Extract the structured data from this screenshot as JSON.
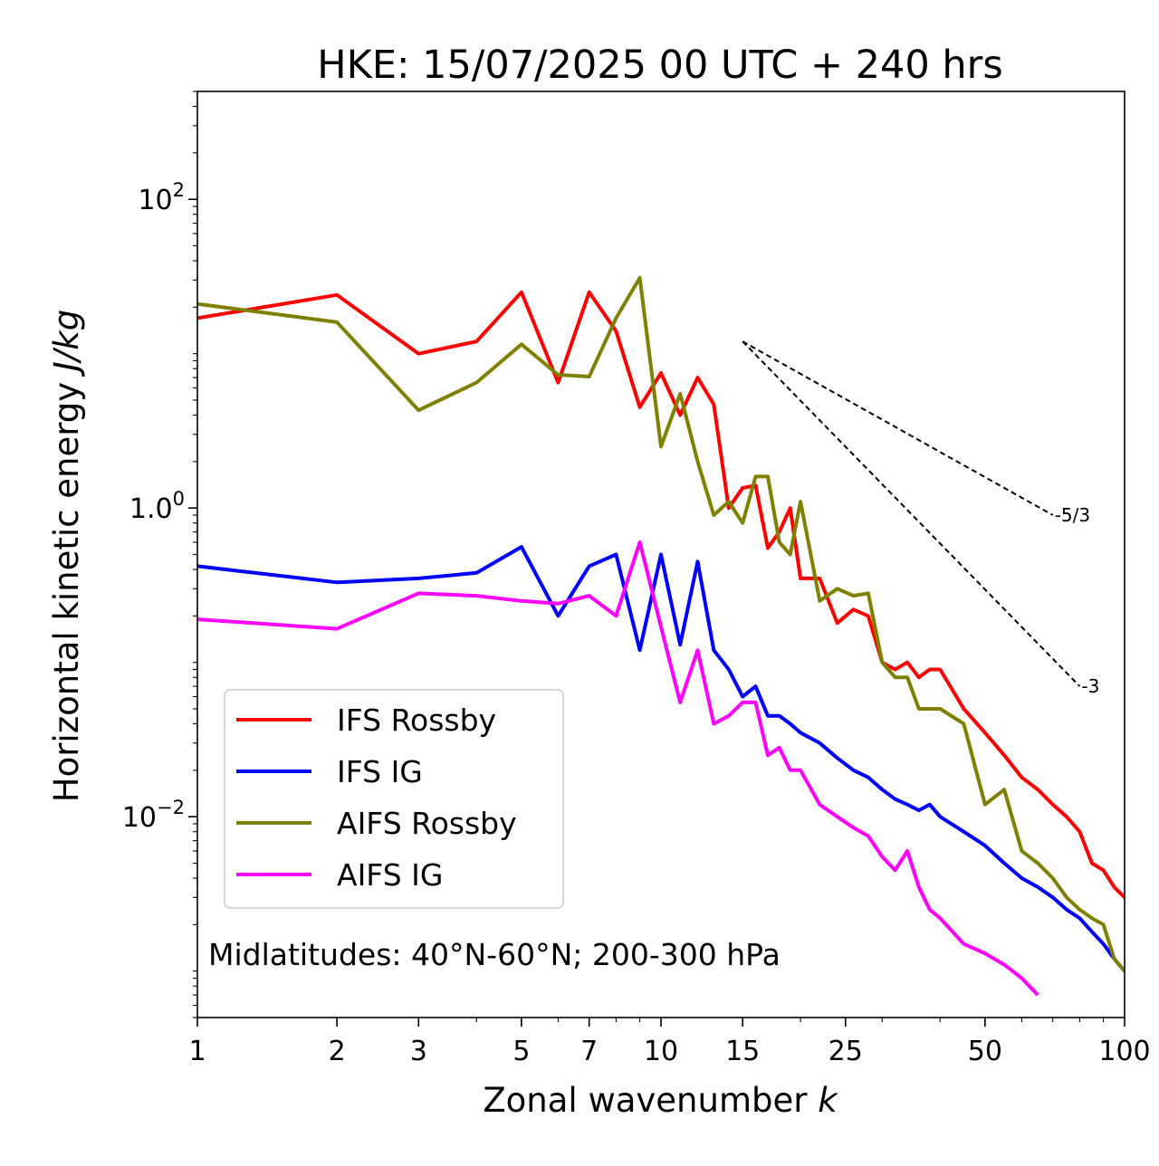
{
  "chart_data": {
    "type": "line",
    "title": "HKE: 15/07/2025 00 UTC + 240 hrs",
    "xlabel": "Zonal wavenumber",
    "xlabel_var": "k",
    "ylabel": "Horizontal kinetic energy",
    "ylabel_units": "J/kg",
    "xscale": "log",
    "yscale": "log",
    "xlim": [
      1,
      100
    ],
    "ylim": [
      0.0005,
      500
    ],
    "x_ticks": [
      1,
      2,
      3,
      5,
      7,
      10,
      15,
      25,
      50,
      100
    ],
    "x_tick_labels": [
      "1",
      "2",
      "3",
      "5",
      "7",
      "10",
      "15",
      "25",
      "50",
      "100"
    ],
    "y_ticks": [
      {
        "value": 100,
        "base": "10",
        "exp": "2"
      },
      {
        "value": 1,
        "base": "1.0",
        "exp": "0"
      },
      {
        "value": 0.01,
        "base": "10",
        "exp": "−2"
      }
    ],
    "annotation": "Midlatitudes: 40°N-60°N; 200-300 hPa",
    "legend_position": "lower-left",
    "grid": false,
    "reference_lines": [
      {
        "label": "-5/3",
        "x": [
          15,
          70
        ],
        "y": [
          12,
          0.9
        ]
      },
      {
        "label": "-3",
        "x": [
          15,
          80
        ],
        "y": [
          12,
          0.07
        ]
      }
    ],
    "series": [
      {
        "name": "IFS Rossby",
        "color": "#ff0000",
        "x": [
          1,
          2,
          3,
          4,
          5,
          6,
          7,
          8,
          9,
          10,
          11,
          12,
          13,
          14,
          15,
          16,
          17,
          18,
          19,
          20,
          22,
          24,
          26,
          28,
          30,
          32,
          34,
          36,
          38,
          40,
          45,
          50,
          55,
          60,
          65,
          70,
          75,
          80,
          85,
          90,
          95,
          100
        ],
        "y": [
          17,
          24,
          10,
          12,
          25,
          6.5,
          25,
          14,
          4.5,
          7.5,
          4,
          7,
          4.7,
          1.0,
          1.35,
          1.4,
          0.55,
          0.7,
          1.0,
          0.35,
          0.35,
          0.18,
          0.22,
          0.2,
          0.1,
          0.09,
          0.1,
          0.08,
          0.09,
          0.09,
          0.05,
          0.035,
          0.025,
          0.018,
          0.015,
          0.012,
          0.01,
          0.008,
          0.005,
          0.0045,
          0.0035,
          0.003
        ]
      },
      {
        "name": "IFS IG",
        "color": "#0000ff",
        "x": [
          1,
          2,
          3,
          4,
          5,
          6,
          7,
          8,
          9,
          10,
          11,
          12,
          13,
          14,
          15,
          16,
          17,
          18,
          19,
          20,
          22,
          24,
          26,
          28,
          30,
          32,
          34,
          36,
          38,
          40,
          45,
          50,
          55,
          60,
          65,
          70,
          75,
          80,
          85,
          90,
          95,
          100
        ],
        "y": [
          0.42,
          0.33,
          0.35,
          0.38,
          0.56,
          0.2,
          0.42,
          0.5,
          0.12,
          0.5,
          0.13,
          0.45,
          0.12,
          0.09,
          0.06,
          0.07,
          0.045,
          0.045,
          0.04,
          0.035,
          0.03,
          0.024,
          0.02,
          0.018,
          0.015,
          0.013,
          0.012,
          0.011,
          0.012,
          0.01,
          0.008,
          0.0065,
          0.005,
          0.004,
          0.0035,
          0.003,
          0.0025,
          0.0022,
          0.0018,
          0.0015,
          0.0012,
          0.001
        ]
      },
      {
        "name": "AIFS Rossby",
        "color": "#808000",
        "x": [
          1,
          2,
          3,
          4,
          5,
          6,
          7,
          8,
          9,
          10,
          11,
          12,
          13,
          14,
          15,
          16,
          17,
          18,
          19,
          20,
          22,
          24,
          26,
          28,
          30,
          32,
          34,
          36,
          38,
          40,
          45,
          50,
          55,
          60,
          65,
          70,
          75,
          80,
          85,
          90,
          95,
          100
        ],
        "y": [
          21,
          16,
          4.3,
          6.5,
          11.5,
          7.3,
          7.1,
          17,
          31,
          2.5,
          5.5,
          2.0,
          0.9,
          1.1,
          0.8,
          1.6,
          1.6,
          0.6,
          0.5,
          1.1,
          0.25,
          0.3,
          0.27,
          0.28,
          0.1,
          0.08,
          0.08,
          0.05,
          0.05,
          0.05,
          0.04,
          0.012,
          0.015,
          0.006,
          0.005,
          0.004,
          0.003,
          0.0025,
          0.0022,
          0.002,
          0.0012,
          0.001
        ]
      },
      {
        "name": "AIFS IG",
        "color": "#ff00ff",
        "x": [
          1,
          2,
          3,
          4,
          5,
          6,
          7,
          8,
          9,
          10,
          11,
          12,
          13,
          14,
          15,
          16,
          17,
          18,
          19,
          20,
          22,
          24,
          26,
          28,
          30,
          32,
          34,
          36,
          38,
          40,
          45,
          50,
          55,
          60,
          65
        ],
        "y": [
          0.19,
          0.165,
          0.28,
          0.27,
          0.25,
          0.24,
          0.27,
          0.2,
          0.6,
          0.17,
          0.055,
          0.12,
          0.04,
          0.045,
          0.055,
          0.055,
          0.025,
          0.028,
          0.02,
          0.02,
          0.012,
          0.01,
          0.0085,
          0.0075,
          0.0055,
          0.0045,
          0.006,
          0.0035,
          0.0025,
          0.0022,
          0.0015,
          0.0013,
          0.0011,
          0.0009,
          0.0007
        ]
      }
    ]
  }
}
